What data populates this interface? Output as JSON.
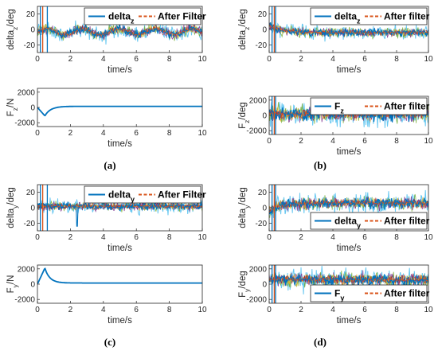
{
  "colors": {
    "raw_line": "#0072bd",
    "filter_line": "#d95319",
    "noise_cyan": "#4dbeee",
    "noise_green": "#77ac30",
    "noise_purple": "#7e2f8e",
    "noise_yellow": "#edb120",
    "noise_red": "#a2142f",
    "axis": "#262626"
  },
  "captions": [
    "(a)",
    "(b)",
    "(c)",
    "(d)"
  ],
  "chart_data": [
    {
      "id": "a-top",
      "type": "line",
      "caption": "(a)",
      "ylabel": "delta",
      "ylabel_sub": "z",
      "ylabel_tail": "/deg",
      "xlabel": "time/s",
      "xlim": [
        0,
        10
      ],
      "ylim": [
        -30,
        30
      ],
      "xticks": [
        "0",
        "2",
        "4",
        "6",
        "8",
        "10"
      ],
      "yticks": [
        "20",
        "0",
        "-20"
      ],
      "legend": {
        "position": "top-right",
        "entries": [
          {
            "label": "delta",
            "sub": "z",
            "style": "solid"
          },
          {
            "label": "After Filter",
            "style": "dashed"
          }
        ]
      },
      "series": [
        {
          "name": "delta_z",
          "shape": "sinusoid",
          "mean": -3,
          "amplitude": 4,
          "period_s": 2.2,
          "noise": 4,
          "transient_end_s": 0.6
        },
        {
          "name": "After Filter",
          "shape": "sinusoid",
          "mean": -3,
          "amplitude": 4,
          "period_s": 2.2,
          "noise": 1.5
        }
      ]
    },
    {
      "id": "a-bottom",
      "type": "line",
      "caption": "(a)",
      "ylabel": "F",
      "ylabel_sub": "z",
      "ylabel_tail": "/N",
      "xlabel": "time/s",
      "xlim": [
        0,
        10
      ],
      "ylim": [
        -2500,
        2500
      ],
      "xticks": [
        "0",
        "2",
        "4",
        "6",
        "8",
        "10"
      ],
      "yticks": [
        "2000",
        "0",
        "-2000"
      ],
      "series": [
        {
          "name": "F_z",
          "shape": "dip",
          "start": 0,
          "dip_min": -1100,
          "dip_t": 0.45,
          "settle": 150,
          "noise": 0
        }
      ]
    },
    {
      "id": "b-top",
      "type": "line",
      "caption": "(b)",
      "ylabel": "delta",
      "ylabel_sub": "z",
      "ylabel_tail": "/deg",
      "xlabel": "time/s",
      "xlim": [
        0,
        10
      ],
      "ylim": [
        -30,
        30
      ],
      "xticks": [
        "0",
        "2",
        "4",
        "6",
        "8",
        "10"
      ],
      "yticks": [
        "20",
        "0",
        "-20"
      ],
      "legend": {
        "position": "top-right",
        "entries": [
          {
            "label": "delta",
            "sub": "z",
            "style": "solid"
          },
          {
            "label": "After filter",
            "style": "dashed"
          }
        ]
      },
      "series": [
        {
          "name": "delta_z",
          "shape": "decay",
          "mean": -4,
          "start_level": 5,
          "noise": 3.5,
          "transient_end_s": 0.4
        },
        {
          "name": "After filter",
          "shape": "decay",
          "mean": -4,
          "start_level": 5,
          "noise": 1.2
        }
      ]
    },
    {
      "id": "b-bottom",
      "type": "line",
      "caption": "(b)",
      "ylabel": "F",
      "ylabel_sub": "z",
      "ylabel_tail": "/deg",
      "xlabel": "time/s",
      "xlim": [
        0,
        10
      ],
      "ylim": [
        -2500,
        2500
      ],
      "xticks": [
        "0",
        "2",
        "4",
        "6",
        "8",
        "10"
      ],
      "yticks": [
        "2000",
        "0",
        "-2000"
      ],
      "legend": {
        "position": "top-right",
        "entries": [
          {
            "label": "F",
            "sub": "z",
            "style": "solid"
          },
          {
            "label": "After filter",
            "style": "dashed"
          }
        ]
      },
      "series": [
        {
          "name": "F_z",
          "shape": "noisy",
          "mean": 200,
          "noise": 650,
          "transient_end_s": 0.4
        },
        {
          "name": "After filter",
          "shape": "noisy",
          "mean": 200,
          "noise": 250
        }
      ]
    },
    {
      "id": "c-top",
      "type": "line",
      "caption": "(c)",
      "ylabel": "delta",
      "ylabel_sub": "y",
      "ylabel_tail": "/deg",
      "xlabel": "time/s",
      "xlim": [
        0,
        10
      ],
      "ylim": [
        -30,
        30
      ],
      "xticks": [
        "0",
        "2",
        "4",
        "6",
        "8",
        "10"
      ],
      "yticks": [
        "20",
        "0",
        "-20"
      ],
      "legend": {
        "position": "top-right",
        "entries": [
          {
            "label": "delta",
            "sub": "y",
            "style": "solid"
          },
          {
            "label": "After Filter",
            "style": "dashed"
          }
        ]
      },
      "series": [
        {
          "name": "delta_y",
          "shape": "noisy",
          "mean": 2,
          "noise": 3.5,
          "transient_end_s": 0.6,
          "spike_t": 2.4
        },
        {
          "name": "After Filter",
          "shape": "noisy",
          "mean": 2,
          "noise": 1.2
        }
      ]
    },
    {
      "id": "c-bottom",
      "type": "line",
      "caption": "(c)",
      "ylabel": "F",
      "ylabel_sub": "y",
      "ylabel_tail": "/N",
      "xlabel": "time/s",
      "xlim": [
        0,
        10
      ],
      "ylim": [
        -2500,
        2500
      ],
      "xticks": [
        "0",
        "2",
        "4",
        "6",
        "8",
        "10"
      ],
      "yticks": [
        "2000",
        "0",
        "-2000"
      ],
      "series": [
        {
          "name": "F_y",
          "shape": "bump",
          "start": 0,
          "peak": 2100,
          "peak_t": 0.45,
          "settle": 150,
          "noise": 0
        }
      ]
    },
    {
      "id": "d-top",
      "type": "line",
      "caption": "(d)",
      "ylabel": "delta",
      "ylabel_sub": "y",
      "ylabel_tail": "/deg",
      "xlabel": "time/s",
      "xlim": [
        0,
        10
      ],
      "ylim": [
        -30,
        30
      ],
      "xticks": [
        "0",
        "2",
        "4",
        "6",
        "8",
        "10"
      ],
      "yticks": [
        "20",
        "0",
        "-20"
      ],
      "legend": {
        "position": "bottom-right",
        "entries": [
          {
            "label": "delta",
            "sub": "y",
            "style": "solid"
          },
          {
            "label": "After filter",
            "style": "dashed"
          }
        ]
      },
      "series": [
        {
          "name": "delta_y",
          "shape": "rise",
          "mean": 6,
          "start_level": -5,
          "noise": 5,
          "transient_end_s": 0.4
        },
        {
          "name": "After filter",
          "shape": "rise",
          "mean": 6,
          "start_level": -5,
          "noise": 1.8
        }
      ]
    },
    {
      "id": "d-bottom",
      "type": "line",
      "caption": "(d)",
      "ylabel": "F",
      "ylabel_sub": "y",
      "ylabel_tail": "/deg",
      "xlabel": "time/s",
      "xlim": [
        0,
        10
      ],
      "ylim": [
        -2500,
        2500
      ],
      "xticks": [
        "0",
        "2",
        "4",
        "6",
        "8",
        "10"
      ],
      "yticks": [
        "2000",
        "0",
        "-2000"
      ],
      "legend": {
        "position": "bottom-right",
        "entries": [
          {
            "label": "F",
            "sub": "y",
            "style": "solid"
          },
          {
            "label": "After filter",
            "style": "dashed"
          }
        ]
      },
      "series": [
        {
          "name": "F_y",
          "shape": "noisy",
          "mean": 600,
          "noise": 550,
          "transient_end_s": 0.4
        },
        {
          "name": "After filter",
          "shape": "noisy",
          "mean": 600,
          "noise": 200
        }
      ]
    }
  ]
}
